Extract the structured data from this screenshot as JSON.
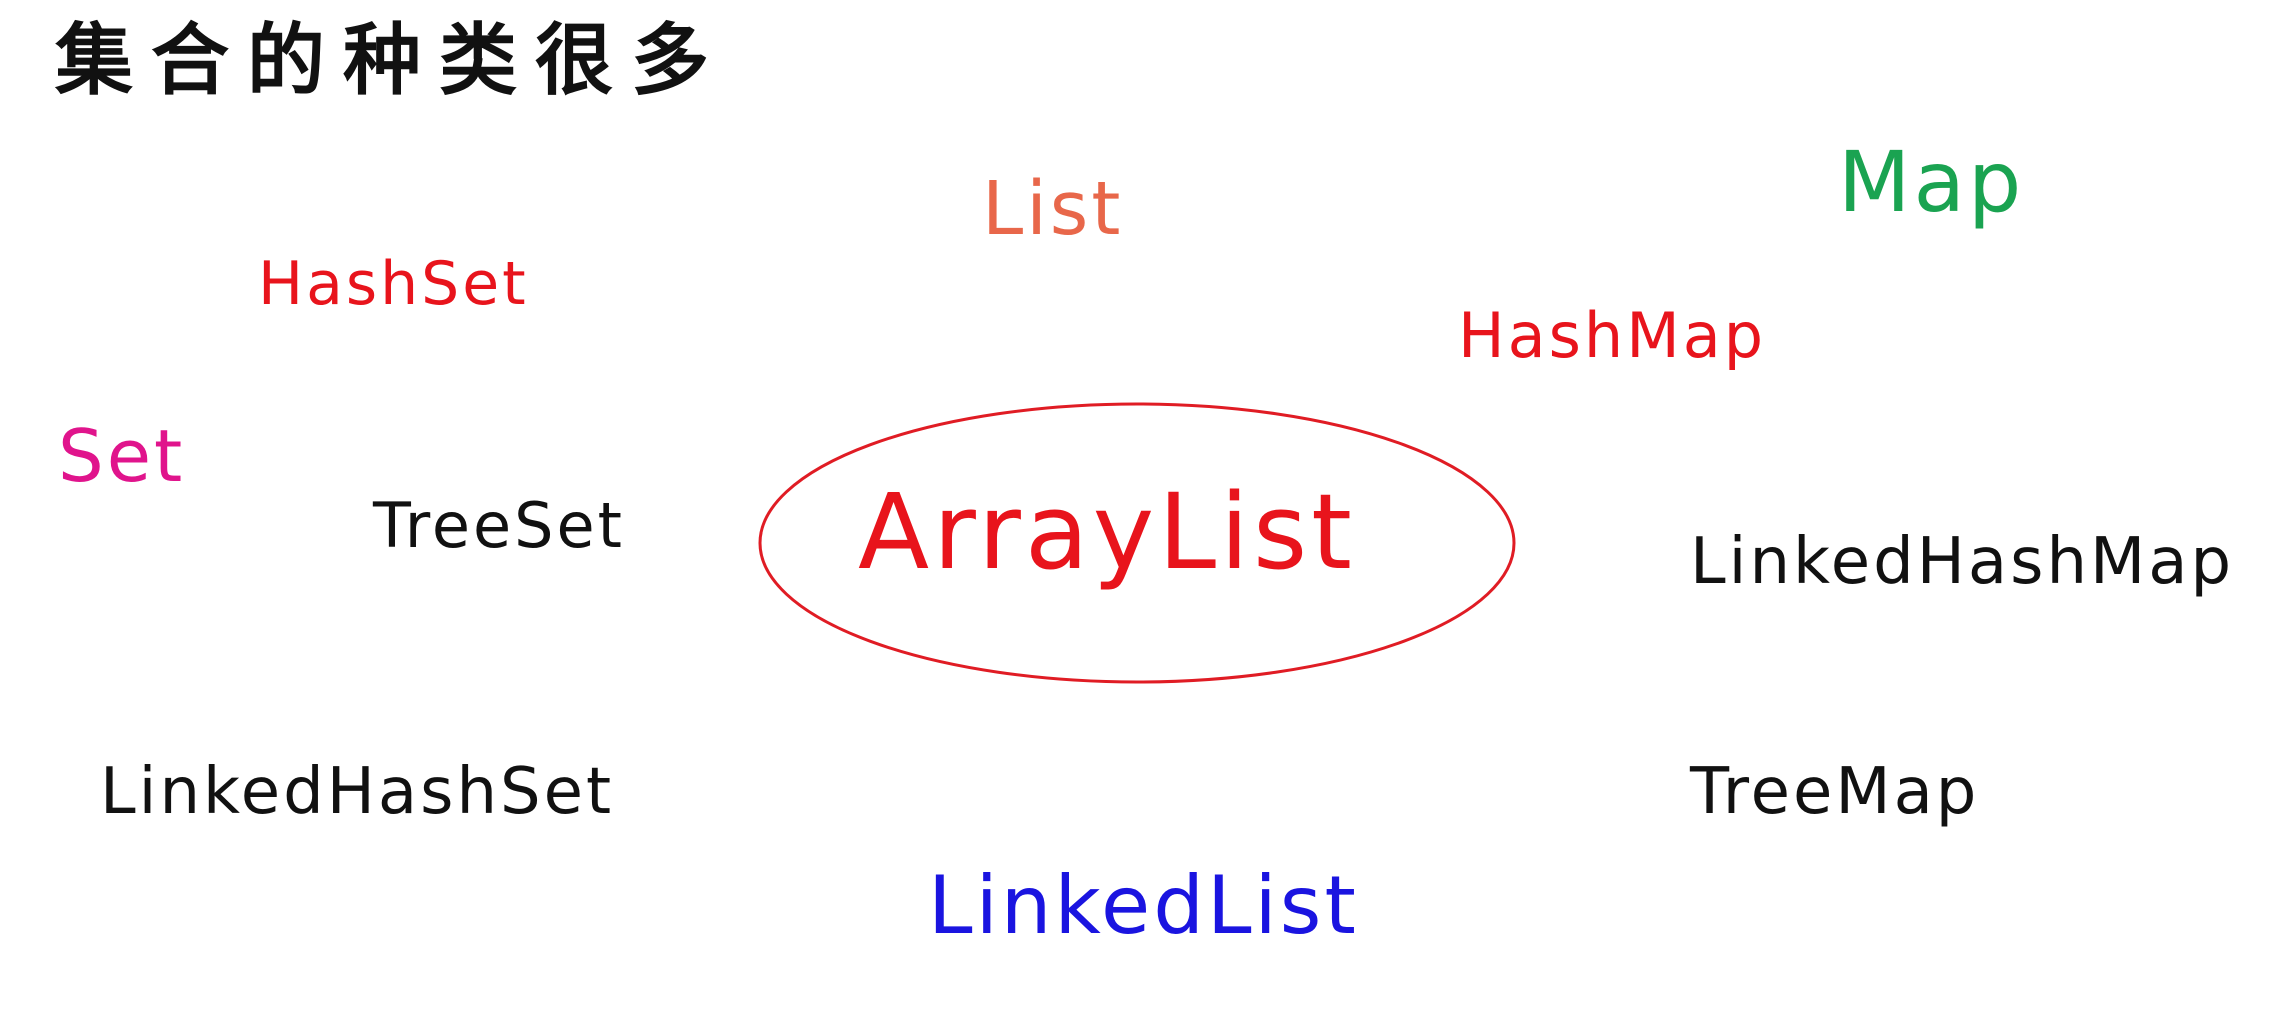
{
  "title": "集合的种类很多",
  "terms": {
    "list": {
      "text": "List",
      "color": "#e8674a"
    },
    "map": {
      "text": "Map",
      "color": "#1aa351"
    },
    "hashset": {
      "text": "HashSet",
      "color": "#e8141c"
    },
    "hashmap": {
      "text": "HashMap",
      "color": "#e8141c"
    },
    "set": {
      "text": "Set",
      "color": "#e0148c"
    },
    "treeset": {
      "text": "TreeSet",
      "color": "#111111"
    },
    "arraylist": {
      "text": "ArrayList",
      "color": "#e8141c"
    },
    "linkedhashmap": {
      "text": "LinkedHashMap",
      "color": "#111111"
    },
    "linkedhashset": {
      "text": "LinkedHashSet",
      "color": "#111111"
    },
    "treemap": {
      "text": "TreeMap",
      "color": "#111111"
    },
    "linkedlist": {
      "text": "LinkedList",
      "color": "#1a14e0"
    }
  },
  "highlight": {
    "target": "arraylist",
    "shape": "ellipse",
    "color": "#e01c24"
  }
}
